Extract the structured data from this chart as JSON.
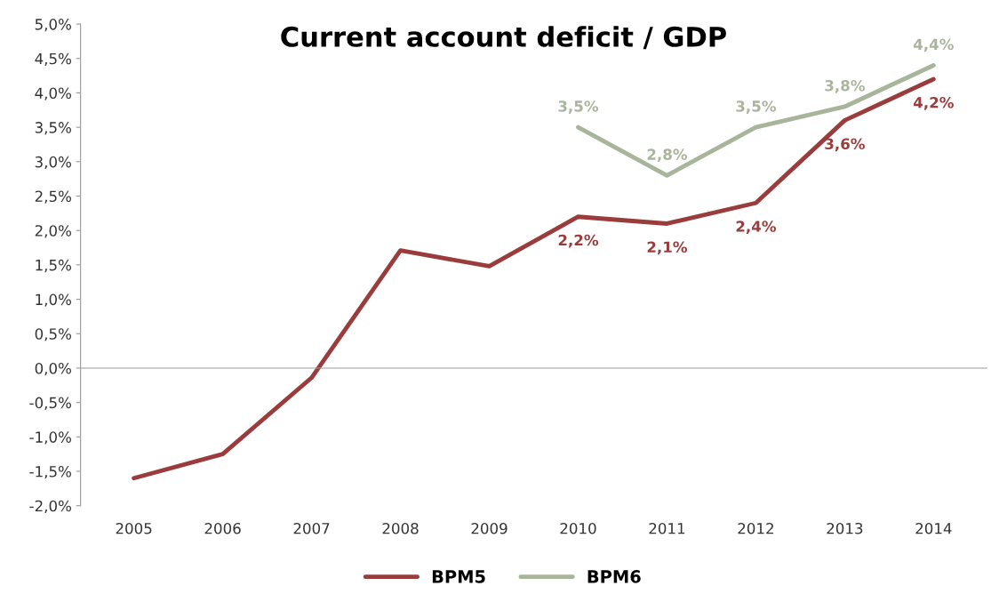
{
  "chart_data": {
    "type": "line",
    "title": "Current account deficit / GDP",
    "categories": [
      "2005",
      "2006",
      "2007",
      "2008",
      "2009",
      "2010",
      "2011",
      "2012",
      "2013",
      "2014"
    ],
    "series": [
      {
        "name": "BPM5",
        "color": "#9b3c3c",
        "values": [
          -1.6,
          -1.25,
          -0.14,
          1.71,
          1.48,
          2.2,
          2.1,
          2.4,
          3.6,
          4.2
        ],
        "value_labels": [
          null,
          null,
          null,
          null,
          null,
          "2,2%",
          "2,1%",
          "2,4%",
          "3,6%",
          "4,2%"
        ]
      },
      {
        "name": "BPM6",
        "color": "#a9b59b",
        "values": [
          null,
          null,
          null,
          null,
          null,
          3.5,
          2.8,
          3.5,
          3.8,
          4.4
        ],
        "value_labels": [
          null,
          null,
          null,
          null,
          null,
          "3,5%",
          "2,8%",
          "3,5%",
          "3,8%",
          "4,4%"
        ]
      }
    ],
    "ylim": [
      -2.0,
      5.0
    ],
    "yticks": [
      {
        "value": -2.0,
        "label": "-2,0%"
      },
      {
        "value": -1.5,
        "label": "-1,5%"
      },
      {
        "value": -1.0,
        "label": "-1,0%"
      },
      {
        "value": -0.5,
        "label": "-0,5%"
      },
      {
        "value": 0.0,
        "label": "0,0%"
      },
      {
        "value": 0.5,
        "label": "0,5%"
      },
      {
        "value": 1.0,
        "label": "1,0%"
      },
      {
        "value": 1.5,
        "label": "1,5%"
      },
      {
        "value": 2.0,
        "label": "2,0%"
      },
      {
        "value": 2.5,
        "label": "2,5%"
      },
      {
        "value": 3.0,
        "label": "3,0%"
      },
      {
        "value": 3.5,
        "label": "3,5%"
      },
      {
        "value": 4.0,
        "label": "4,0%"
      },
      {
        "value": 4.5,
        "label": "4,5%"
      },
      {
        "value": 5.0,
        "label": "5,0%"
      }
    ],
    "legend": "bottom",
    "marker": "none",
    "line_style": "solid"
  }
}
